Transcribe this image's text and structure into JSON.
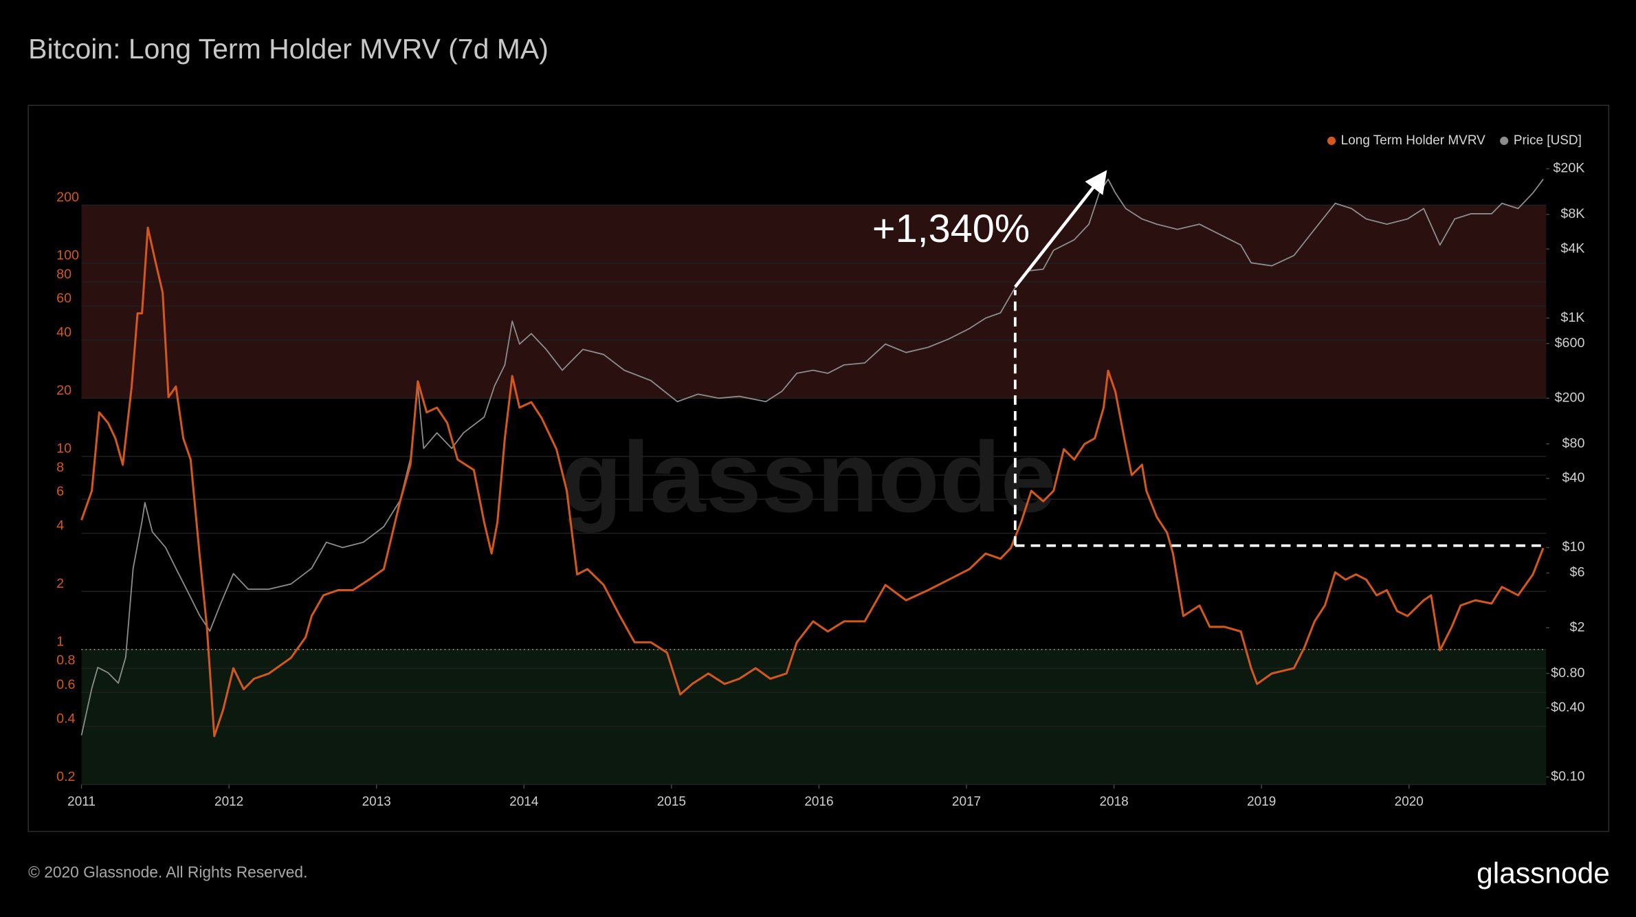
{
  "chart_data": {
    "type": "line",
    "title": "Bitcoin: Long Term Holder MVRV (7d MA)",
    "annotation": "+1,340%",
    "log_scale": true,
    "grid": true,
    "legend": "top-right",
    "xlim": [
      2011,
      2020.93
    ],
    "xticks": [
      2011,
      2012,
      2013,
      2014,
      2015,
      2016,
      2017,
      2018,
      2019,
      2020
    ],
    "ylim": [
      0.2,
      420
    ],
    "yticks": [
      200,
      100,
      80,
      60,
      40,
      20,
      10,
      8,
      6,
      4,
      2,
      1,
      0.8,
      0.6,
      0.4,
      0.2
    ],
    "y2lim": [
      0.086,
      33600
    ],
    "y2ticks": [
      {
        "value": 20000,
        "label": "$20K"
      },
      {
        "value": 8000,
        "label": "$8K"
      },
      {
        "value": 4000,
        "label": "$4K"
      },
      {
        "value": 1000,
        "label": "$1K"
      },
      {
        "value": 600,
        "label": "$600"
      },
      {
        "value": 200,
        "label": "$200"
      },
      {
        "value": 80,
        "label": "$80"
      },
      {
        "value": 40,
        "label": "$40"
      },
      {
        "value": 10,
        "label": "$10"
      },
      {
        "value": 6,
        "label": "$6"
      },
      {
        "value": 2,
        "label": "$2"
      },
      {
        "value": 0.8,
        "label": "$0.80"
      },
      {
        "value": 0.4,
        "label": "$0.40"
      },
      {
        "value": 0.1,
        "label": "$0.10"
      }
    ],
    "bands": [
      {
        "from": 20,
        "to": 200,
        "color": "#2b1010"
      },
      {
        "from": 0.2,
        "to": 1,
        "color": "#0b190e"
      }
    ],
    "reference_line": 1,
    "series": [
      {
        "name": "Long Term Holder MVRV",
        "color": "#d4581a",
        "x": [
          2011.0,
          2011.07,
          2011.12,
          2011.18,
          2011.23,
          2011.28,
          2011.34,
          2011.38,
          2011.41,
          2011.45,
          2011.5,
          2011.55,
          2011.59,
          2011.64,
          2011.69,
          2011.74,
          2011.8,
          2011.85,
          2011.9,
          2011.96,
          2012.03,
          2012.1,
          2012.17,
          2012.27,
          2012.42,
          2012.52,
          2012.56,
          2012.64,
          2012.74,
          2012.84,
          2012.95,
          2013.05,
          2013.16,
          2013.23,
          2013.28,
          2013.34,
          2013.41,
          2013.48,
          2013.55,
          2013.66,
          2013.73,
          2013.78,
          2013.82,
          2013.87,
          2013.92,
          2013.97,
          2014.05,
          2014.12,
          2014.22,
          2014.29,
          2014.36,
          2014.43,
          2014.54,
          2014.65,
          2014.75,
          2014.86,
          2014.97,
          2015.06,
          2015.14,
          2015.25,
          2015.36,
          2015.46,
          2015.57,
          2015.67,
          2015.78,
          2015.85,
          2015.96,
          2016.06,
          2016.17,
          2016.31,
          2016.45,
          2016.59,
          2016.74,
          2016.88,
          2017.02,
          2017.13,
          2017.23,
          2017.3,
          2017.37,
          2017.44,
          2017.52,
          2017.59,
          2017.66,
          2017.73,
          2017.8,
          2017.87,
          2017.93,
          2017.96,
          2018.01,
          2018.07,
          2018.12,
          2018.19,
          2018.22,
          2018.29,
          2018.36,
          2018.4,
          2018.47,
          2018.58,
          2018.65,
          2018.75,
          2018.86,
          2018.93,
          2018.97,
          2019.07,
          2019.22,
          2019.29,
          2019.36,
          2019.43,
          2019.5,
          2019.57,
          2019.64,
          2019.71,
          2019.78,
          2019.85,
          2019.92,
          2019.99,
          2020.1,
          2020.15,
          2020.21,
          2020.29,
          2020.35,
          2020.45,
          2020.56,
          2020.63,
          2020.74,
          2020.84,
          2020.91
        ],
        "values": [
          4.68,
          6.63,
          16.9,
          14.9,
          12.4,
          9.05,
          23.0,
          55.0,
          55.0,
          153,
          103,
          70.6,
          20.3,
          23.0,
          12.4,
          9.63,
          3.14,
          1.31,
          0.356,
          0.486,
          0.8,
          0.623,
          0.706,
          0.751,
          0.905,
          1.16,
          1.49,
          1.91,
          2.03,
          2.03,
          2.3,
          2.61,
          5.86,
          9.05,
          24.5,
          16.9,
          17.9,
          14.9,
          9.63,
          8.51,
          4.56,
          3.14,
          4.56,
          12.4,
          26.1,
          17.9,
          19.1,
          15.8,
          10.9,
          6.63,
          2.45,
          2.61,
          2.16,
          1.49,
          1.09,
          1.09,
          0.963,
          0.586,
          0.663,
          0.751,
          0.663,
          0.706,
          0.8,
          0.706,
          0.751,
          1.09,
          1.4,
          1.24,
          1.4,
          1.4,
          2.16,
          1.8,
          2.03,
          2.3,
          2.61,
          3.14,
          2.95,
          3.35,
          4.56,
          6.63,
          5.86,
          6.63,
          10.9,
          9.63,
          11.6,
          12.4,
          17.9,
          27.8,
          21.6,
          12.4,
          8.0,
          9.05,
          6.63,
          4.86,
          4.03,
          3.14,
          1.49,
          1.69,
          1.31,
          1.31,
          1.24,
          0.8,
          0.663,
          0.751,
          0.8,
          1.02,
          1.4,
          1.69,
          2.51,
          2.3,
          2.45,
          2.3,
          1.91,
          2.03,
          1.58,
          1.49,
          1.8,
          1.91,
          0.99,
          1.31,
          1.69,
          1.8,
          1.73,
          2.11,
          1.91,
          2.45,
          3.35
        ]
      },
      {
        "name": "Price [USD]",
        "color": "#8c8c8c",
        "axis": "y2",
        "x": [
          2011.0,
          2011.07,
          2011.11,
          2011.18,
          2011.25,
          2011.3,
          2011.35,
          2011.41,
          2011.43,
          2011.48,
          2011.57,
          2011.64,
          2011.73,
          2011.8,
          2011.87,
          2011.94,
          2012.03,
          2012.13,
          2012.27,
          2012.42,
          2012.56,
          2012.66,
          2012.77,
          2012.91,
          2013.05,
          2013.16,
          2013.23,
          2013.28,
          2013.32,
          2013.41,
          2013.51,
          2013.59,
          2013.73,
          2013.8,
          2013.87,
          2013.92,
          2013.97,
          2014.05,
          2014.15,
          2014.26,
          2014.4,
          2014.54,
          2014.68,
          2014.86,
          2015.04,
          2015.18,
          2015.32,
          2015.46,
          2015.64,
          2015.75,
          2015.85,
          2015.96,
          2016.06,
          2016.17,
          2016.31,
          2016.45,
          2016.59,
          2016.74,
          2016.88,
          2017.02,
          2017.13,
          2017.23,
          2017.32,
          2017.41,
          2017.52,
          2017.59,
          2017.73,
          2017.83,
          2017.9,
          2017.96,
          2018.01,
          2018.08,
          2018.19,
          2018.29,
          2018.43,
          2018.58,
          2018.72,
          2018.86,
          2018.93,
          2019.07,
          2019.22,
          2019.36,
          2019.5,
          2019.61,
          2019.71,
          2019.85,
          2019.99,
          2020.1,
          2020.21,
          2020.31,
          2020.42,
          2020.56,
          2020.63,
          2020.74,
          2020.84,
          2020.91
        ],
        "values": [
          0.231,
          0.593,
          0.9,
          0.81,
          0.658,
          1.11,
          6.58,
          16.9,
          24.6,
          13.7,
          10,
          6.58,
          3.9,
          2.57,
          1.87,
          3.16,
          5.93,
          4.33,
          4.33,
          4.81,
          6.58,
          11.1,
          10,
          11.1,
          15.2,
          25.7,
          59.3,
          256,
          73.1,
          100,
          73.1,
          100,
          137,
          256,
          390,
          940,
          593,
          731,
          533,
          351,
          533,
          481,
          351,
          285,
          187,
          217,
          200,
          208,
          187,
          231,
          330,
          351,
          330,
          390,
          406,
          593,
          501,
          556,
          658,
          811,
          1000,
          1110,
          1760,
          2570,
          2670,
          3900,
          4810,
          6580,
          12300,
          16200,
          12300,
          9010,
          7310,
          6580,
          5930,
          6580,
          5330,
          4330,
          3030,
          2850,
          3510,
          5930,
          10000,
          9010,
          7310,
          6580,
          7310,
          9010,
          4330,
          7310,
          8110,
          8110,
          10000,
          9010,
          12300,
          16200
        ]
      }
    ]
  },
  "watermark": "glassnode",
  "footer": "© 2020 Glassnode. All Rights Reserved.",
  "brand": "glassnode"
}
